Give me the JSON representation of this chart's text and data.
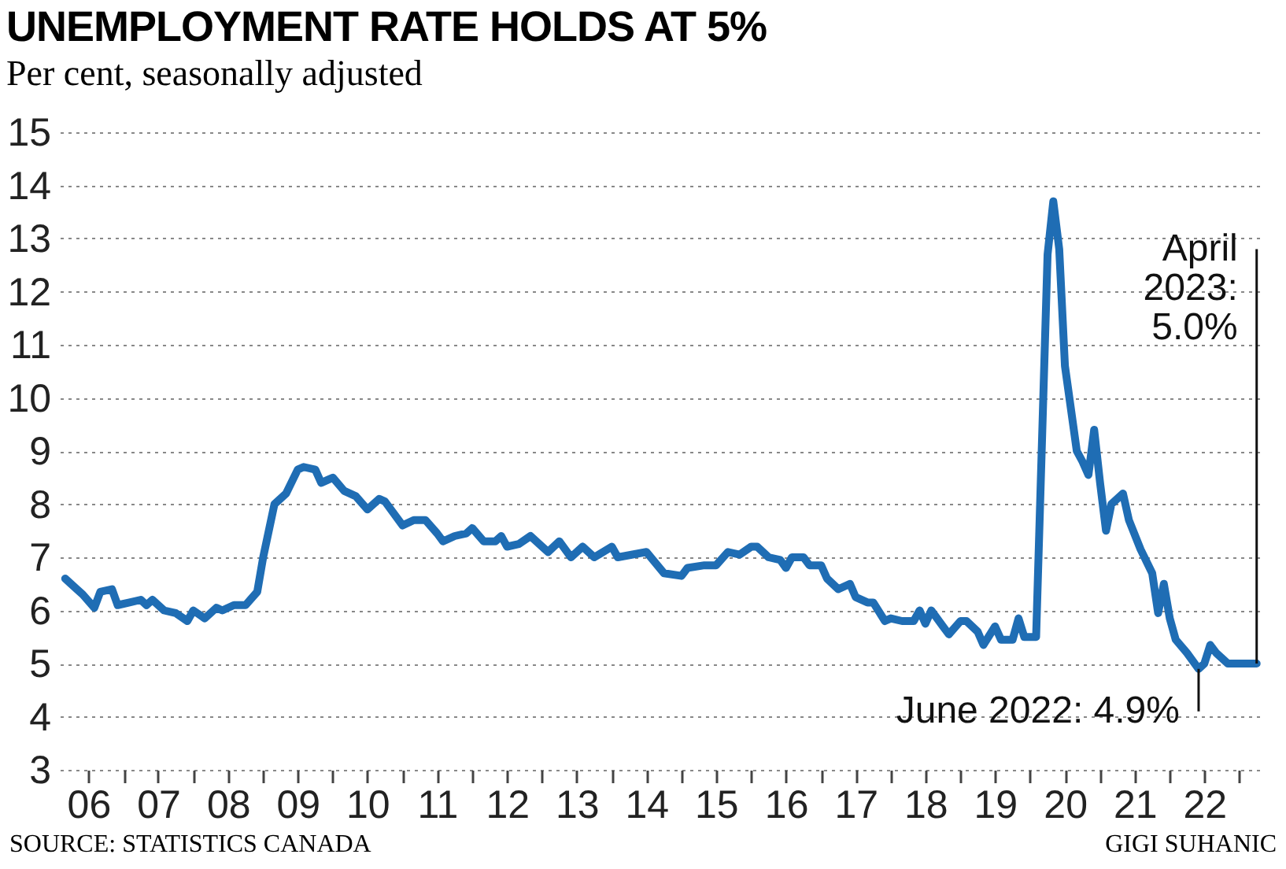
{
  "chart_data": {
    "type": "line",
    "title": "UNEMPLOYMENT RATE HOLDS AT 5%",
    "subtitle": "Per cent, seasonally adjusted",
    "x": [
      "2006-03",
      "2006-05",
      "2006-06",
      "2006-08",
      "2006-09",
      "2006-11",
      "2006-12",
      "2007-02",
      "2007-04",
      "2007-05",
      "2007-06",
      "2007-08",
      "2007-10",
      "2007-12",
      "2008-01",
      "2008-03",
      "2008-05",
      "2008-06",
      "2008-08",
      "2008-10",
      "2008-12",
      "2009-01",
      "2009-03",
      "2009-05",
      "2009-07",
      "2009-08",
      "2009-10",
      "2009-11",
      "2009-12",
      "2010-01",
      "2010-03",
      "2010-05",
      "2010-07",
      "2010-09",
      "2010-10",
      "2011-01",
      "2011-03",
      "2011-05",
      "2011-07",
      "2011-08",
      "2011-10",
      "2011-12",
      "2012-01",
      "2012-03",
      "2012-05",
      "2012-06",
      "2012-07",
      "2012-09",
      "2012-11",
      "2013-01",
      "2013-02",
      "2013-04",
      "2013-06",
      "2013-08",
      "2013-10",
      "2014-01",
      "2014-02",
      "2014-07",
      "2014-10",
      "2015-01",
      "2015-02",
      "2015-05",
      "2015-07",
      "2015-09",
      "2015-11",
      "2016-01",
      "2016-02",
      "2016-04",
      "2016-06",
      "2016-07",
      "2016-08",
      "2016-10",
      "2016-11",
      "2017-01",
      "2017-02",
      "2017-04",
      "2017-06",
      "2017-07",
      "2017-09",
      "2017-10",
      "2017-12",
      "2018-01",
      "2018-03",
      "2018-05",
      "2018-06",
      "2018-07",
      "2018-08",
      "2018-10",
      "2018-11",
      "2019-01",
      "2019-02",
      "2019-04",
      "2019-05",
      "2019-07",
      "2019-08",
      "2019-10",
      "2019-11",
      "2019-12",
      "2020-02",
      "2020-04",
      "2020-05",
      "2020-06",
      "2020-07",
      "2020-09",
      "2020-10",
      "2020-11",
      "2020-12",
      "2021-01",
      "2021-02",
      "2021-03",
      "2021-05",
      "2021-06",
      "2021-08",
      "2021-10",
      "2021-11",
      "2021-12",
      "2022-01",
      "2022-02",
      "2022-04",
      "2022-06",
      "2022-07",
      "2022-08",
      "2022-09",
      "2022-11",
      "2023-04"
    ],
    "series": [
      {
        "color": "#1f6db4",
        "values": [
          6.6,
          6.4,
          6.3,
          6.05,
          6.35,
          6.4,
          6.1,
          6.15,
          6.2,
          6.1,
          6.2,
          6.0,
          5.95,
          5.8,
          6.0,
          5.85,
          6.05,
          6.0,
          6.1,
          6.1,
          6.35,
          7.0,
          8.0,
          8.2,
          8.65,
          8.7,
          8.65,
          8.4,
          8.45,
          8.5,
          8.25,
          8.15,
          7.9,
          8.1,
          8.05,
          7.6,
          7.7,
          7.7,
          7.45,
          7.3,
          7.4,
          7.45,
          7.55,
          7.3,
          7.3,
          7.4,
          7.2,
          7.25,
          7.4,
          7.2,
          7.1,
          7.3,
          7.0,
          7.2,
          7.0,
          7.2,
          7.0,
          7.1,
          6.7,
          6.65,
          6.8,
          6.85,
          6.85,
          7.1,
          7.05,
          7.2,
          7.2,
          7.0,
          6.95,
          6.8,
          7.0,
          7.0,
          6.85,
          6.85,
          6.6,
          6.4,
          6.5,
          6.25,
          6.15,
          6.15,
          5.8,
          5.85,
          5.8,
          5.8,
          6.0,
          5.75,
          6.0,
          5.7,
          5.55,
          5.8,
          5.8,
          5.6,
          5.35,
          5.7,
          5.45,
          5.45,
          5.85,
          5.5,
          5.5,
          12.7,
          13.7,
          12.8,
          10.6,
          9.0,
          8.8,
          8.55,
          9.4,
          8.4,
          7.5,
          8.0,
          8.2,
          7.7,
          7.15,
          6.7,
          5.95,
          6.5,
          5.85,
          5.45,
          5.2,
          4.9,
          5.0,
          5.35,
          5.2,
          5.0,
          5.0
        ]
      }
    ],
    "xlim": [
      "2006-02",
      "2023-05"
    ],
    "ylim": [
      3,
      15
    ],
    "yticks": [
      3,
      4,
      5,
      6,
      7,
      8,
      9,
      10,
      11,
      12,
      13,
      14,
      15
    ],
    "xticks": [
      {
        "value": "2006-07",
        "label": "06"
      },
      {
        "value": "2007-01",
        "label": null
      },
      {
        "value": "2007-07",
        "label": "07"
      },
      {
        "value": "2008-01",
        "label": null
      },
      {
        "value": "2008-07",
        "label": "08"
      },
      {
        "value": "2009-01",
        "label": null
      },
      {
        "value": "2009-07",
        "label": "09"
      },
      {
        "value": "2010-01",
        "label": null
      },
      {
        "value": "2010-07",
        "label": "10"
      },
      {
        "value": "2011-01",
        "label": null
      },
      {
        "value": "2011-07",
        "label": "11"
      },
      {
        "value": "2012-01",
        "label": null
      },
      {
        "value": "2012-07",
        "label": "12"
      },
      {
        "value": "2013-01",
        "label": null
      },
      {
        "value": "2013-07",
        "label": "13"
      },
      {
        "value": "2014-01",
        "label": null
      },
      {
        "value": "2014-07",
        "label": "14"
      },
      {
        "value": "2015-01",
        "label": null
      },
      {
        "value": "2015-07",
        "label": "15"
      },
      {
        "value": "2016-01",
        "label": null
      },
      {
        "value": "2016-07",
        "label": "16"
      },
      {
        "value": "2017-01",
        "label": null
      },
      {
        "value": "2017-07",
        "label": "17"
      },
      {
        "value": "2018-01",
        "label": null
      },
      {
        "value": "2018-07",
        "label": "18"
      },
      {
        "value": "2019-01",
        "label": null
      },
      {
        "value": "2019-07",
        "label": "19"
      },
      {
        "value": "2020-01",
        "label": null
      },
      {
        "value": "2020-07",
        "label": "20"
      },
      {
        "value": "2021-01",
        "label": null
      },
      {
        "value": "2021-07",
        "label": "21"
      },
      {
        "value": "2022-01",
        "label": null
      },
      {
        "value": "2022-07",
        "label": "22"
      },
      {
        "value": "2023-01",
        "label": null
      }
    ],
    "grid": "y",
    "line_style": "solid",
    "annotations": [
      {
        "text": "April\n2023:\n5.0%",
        "x": "2023-04",
        "y": 5.0
      },
      {
        "text": "June 2022: 4.9%",
        "x": "2022-06",
        "y": 4.9
      },
      "SOURCE: STATISTICS CANADA",
      "GIGI SUHANIC"
    ]
  }
}
